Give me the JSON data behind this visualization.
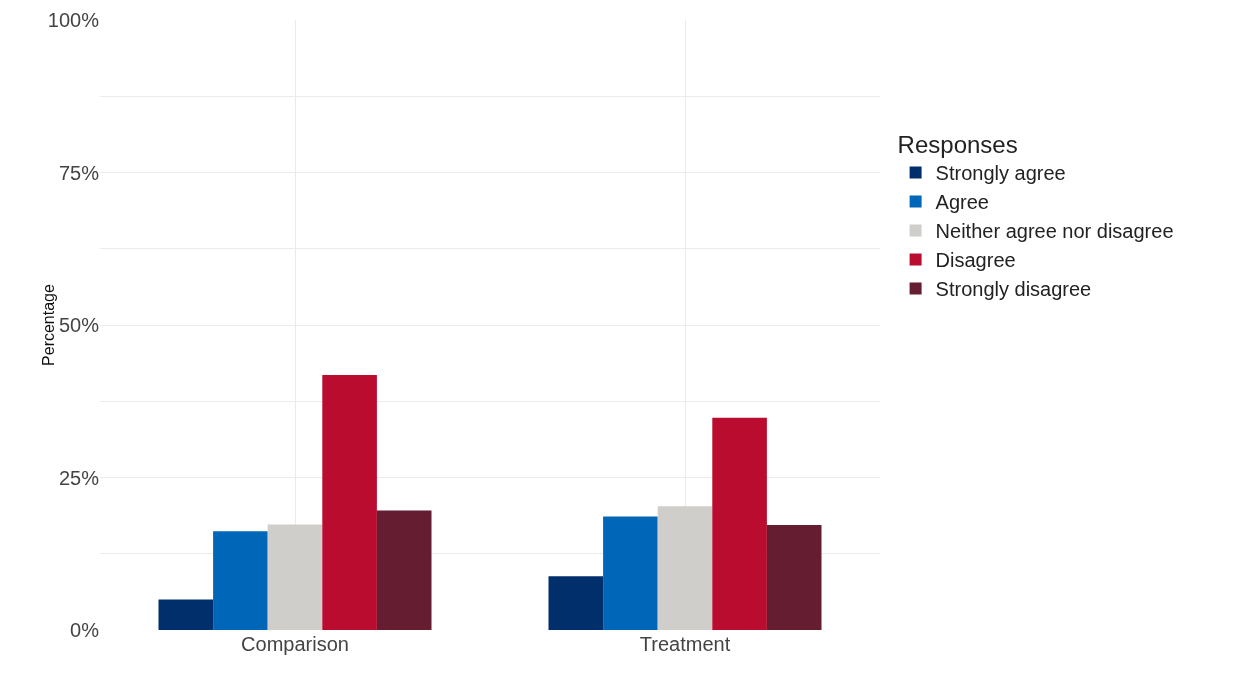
{
  "chart_data": {
    "type": "bar",
    "ylabel": "Percentage",
    "legend_title": "Responses",
    "categories": [
      "Comparison",
      "Treatment"
    ],
    "series": [
      {
        "name": "Strongly agree",
        "color": "#002f6c",
        "values": [
          5.0,
          8.8
        ]
      },
      {
        "name": "Agree",
        "color": "#0066b8",
        "values": [
          16.2,
          18.6
        ]
      },
      {
        "name": "Neither agree nor disagree",
        "color": "#d0ceca",
        "values": [
          17.3,
          20.3
        ]
      },
      {
        "name": "Disagree",
        "color": "#ba0c2f",
        "values": [
          41.8,
          34.8
        ]
      },
      {
        "name": "Strongly disagree",
        "color": "#651d32",
        "values": [
          19.6,
          17.2
        ]
      }
    ],
    "ylim": [
      0,
      100
    ],
    "yticks": [
      {
        "value": 0,
        "label": "0%"
      },
      {
        "value": 12.5,
        "label": null
      },
      {
        "value": 25,
        "label": "25%"
      },
      {
        "value": 37.5,
        "label": null
      },
      {
        "value": 50,
        "label": "50%"
      },
      {
        "value": 62.5,
        "label": null
      },
      {
        "value": 75,
        "label": "75%"
      },
      {
        "value": 87.5,
        "label": null
      },
      {
        "value": 100,
        "label": "100%"
      }
    ],
    "grid": true,
    "legend": "right"
  }
}
